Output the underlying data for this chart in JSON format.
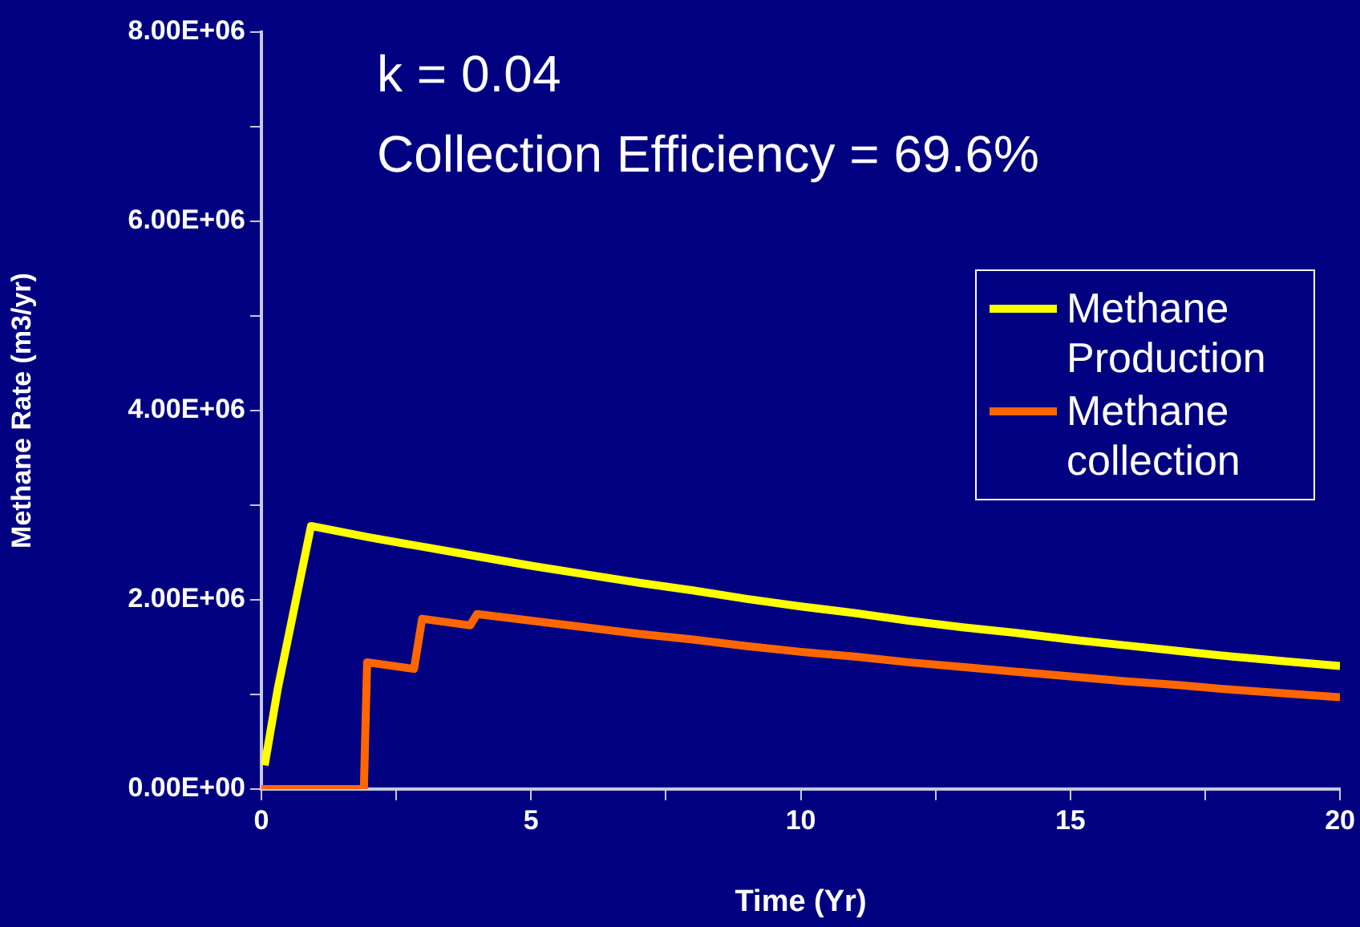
{
  "chart_data": {
    "type": "line",
    "xlabel": "Time (Yr)",
    "ylabel": "Methane Rate (m3/yr)",
    "annotations": [
      "k = 0.04",
      "Collection Efficiency = 69.6%"
    ],
    "xlim": [
      0,
      20
    ],
    "xticks": [
      0,
      {
        "value": 2.5,
        "label": null
      },
      5,
      {
        "value": 7.5,
        "label": null
      },
      10,
      {
        "value": 12.5,
        "label": null
      },
      15,
      {
        "value": 17.5,
        "label": null
      },
      20
    ],
    "ylim": [
      0,
      8000000
    ],
    "yticks": [
      {
        "value": 0,
        "label": "0.00E+00"
      },
      {
        "value": 1000000,
        "label": null
      },
      {
        "value": 2000000,
        "label": "2.00E+06"
      },
      {
        "value": 3000000,
        "label": null
      },
      {
        "value": 4000000,
        "label": "4.00E+06"
      },
      {
        "value": 5000000,
        "label": null
      },
      {
        "value": 6000000,
        "label": "6.00E+06"
      },
      {
        "value": 7000000,
        "label": null
      },
      {
        "value": 8000000,
        "label": "8.00E+06"
      }
    ],
    "grid": false,
    "legend": "right",
    "marker": "none",
    "line_style": "solid",
    "series": [
      {
        "name": "Methane Production",
        "color": "#ffff00",
        "x": [
          0.06,
          0.3,
          0.92,
          2,
          3,
          4,
          5,
          6,
          7,
          8,
          9,
          10,
          11,
          12,
          13,
          14,
          15,
          16,
          17,
          18,
          19,
          20
        ],
        "values": [
          250000,
          1050000,
          2780000,
          2660000,
          2560000,
          2460000,
          2360000,
          2270000,
          2180000,
          2100000,
          2010000,
          1930000,
          1860000,
          1780000,
          1710000,
          1650000,
          1580000,
          1520000,
          1460000,
          1400000,
          1350000,
          1300000
        ]
      },
      {
        "name": "Methane collection",
        "color": "#ff6600",
        "x": [
          0,
          1.9,
          1.96,
          2.83,
          2.98,
          3.87,
          4,
          5,
          6,
          7,
          8,
          9,
          10,
          11,
          12,
          13,
          14,
          15,
          16,
          17,
          18,
          19,
          20
        ],
        "values": [
          0,
          0,
          1340000,
          1270000,
          1800000,
          1730000,
          1850000,
          1780000,
          1710000,
          1640000,
          1580000,
          1510000,
          1450000,
          1400000,
          1340000,
          1290000,
          1240000,
          1190000,
          1140000,
          1100000,
          1050000,
          1010000,
          970000
        ]
      }
    ]
  }
}
